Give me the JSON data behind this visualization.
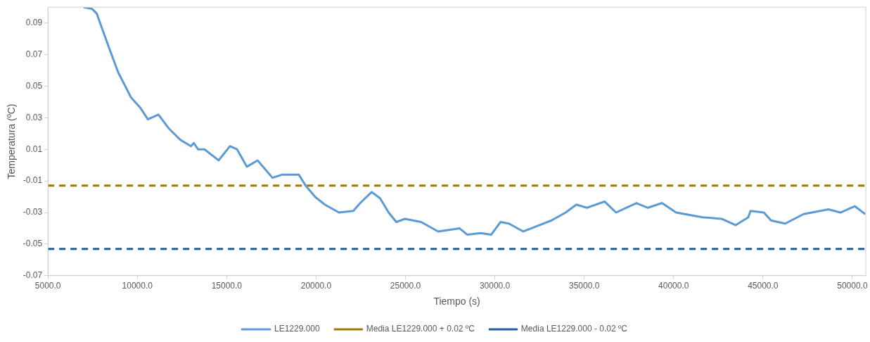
{
  "chart_data": {
    "type": "line",
    "xlabel": "Tiempo (s)",
    "ylabel": "Temperatura (ºC)",
    "xlim": [
      5000,
      50750
    ],
    "ylim": [
      -0.07,
      0.1
    ],
    "xticks": [
      {
        "value": 5000,
        "label": "5000.0"
      },
      {
        "value": 10000,
        "label": "10000.0"
      },
      {
        "value": 15000,
        "label": "15000.0"
      },
      {
        "value": 20000,
        "label": "20000.0"
      },
      {
        "value": 25000,
        "label": "25000.0"
      },
      {
        "value": 30000,
        "label": "30000.0"
      },
      {
        "value": 35000,
        "label": "35000.0"
      },
      {
        "value": 40000,
        "label": "40000.0"
      },
      {
        "value": 45000,
        "label": "45000.0"
      },
      {
        "value": 50000,
        "label": "50000.0"
      }
    ],
    "yticks": [
      -0.07,
      -0.05,
      -0.03,
      -0.01,
      0.01,
      0.03,
      0.05,
      0.07,
      0.09
    ],
    "grid": false,
    "legend": "bottom",
    "marker": "none",
    "series": [
      {
        "name": "LE1229.000",
        "color": "#5b9bd5",
        "line_style": "solid",
        "x": [
          7000,
          7460,
          7730,
          8330,
          8920,
          9640,
          10190,
          10590,
          11180,
          11780,
          12410,
          13000,
          13160,
          13400,
          13760,
          14550,
          15180,
          15580,
          16130,
          16730,
          17560,
          18110,
          19030,
          19420,
          19940,
          20490,
          21280,
          22080,
          22470,
          23110,
          23580,
          24060,
          24490,
          24970,
          25880,
          26830,
          28020,
          28450,
          29210,
          29800,
          30320,
          30790,
          31590,
          32500,
          33170,
          33960,
          34560,
          35150,
          36140,
          36780,
          37920,
          38560,
          39350,
          40140,
          41610,
          42680,
          43470,
          44180,
          44300,
          45050,
          45450,
          46240,
          47270,
          48660,
          49330,
          50130,
          50720
        ],
        "values": [
          0.1,
          0.099,
          0.096,
          0.077,
          0.059,
          0.043,
          0.036,
          0.029,
          0.032,
          0.023,
          0.016,
          0.012,
          0.014,
          0.01,
          0.01,
          0.003,
          0.012,
          0.01,
          -0.001,
          0.003,
          -0.008,
          -0.006,
          -0.006,
          -0.013,
          -0.02,
          -0.025,
          -0.03,
          -0.029,
          -0.024,
          -0.017,
          -0.021,
          -0.03,
          -0.036,
          -0.034,
          -0.036,
          -0.042,
          -0.04,
          -0.044,
          -0.043,
          -0.044,
          -0.036,
          -0.037,
          -0.042,
          -0.038,
          -0.035,
          -0.03,
          -0.025,
          -0.027,
          -0.023,
          -0.03,
          -0.024,
          -0.027,
          -0.024,
          -0.03,
          -0.033,
          -0.034,
          -0.038,
          -0.033,
          -0.029,
          -0.03,
          -0.035,
          -0.037,
          -0.031,
          -0.028,
          -0.03,
          -0.026,
          -0.031
        ]
      },
      {
        "name": "Media LE1229.000 + 0.02 ºC",
        "color": "#a07800",
        "line_style": "dashed",
        "x": [
          5000,
          50750
        ],
        "values": [
          -0.013,
          -0.013
        ]
      },
      {
        "name": "Media LE1229.000 - 0.02 ºC",
        "color": "#215f9a",
        "line_style": "dashed",
        "x": [
          5000,
          50750
        ],
        "values": [
          -0.053,
          -0.053
        ]
      }
    ]
  }
}
